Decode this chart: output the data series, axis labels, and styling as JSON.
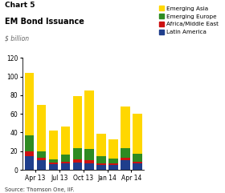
{
  "title_line1": "Chart 5",
  "title_line2": "EM Bond Issuance",
  "subtitle": "$ billion",
  "source": "Source: Thomson One, IIF.",
  "x_tick_labels": [
    "Apr 13",
    "Jul 13",
    "Oct 13",
    "Jan 14",
    "Apr 14"
  ],
  "x_tick_positions": [
    0.5,
    2.5,
    4.5,
    6.5,
    8.5
  ],
  "latin_america": [
    15,
    10,
    6,
    7,
    8,
    7,
    5,
    5,
    10,
    7
  ],
  "africa_me": [
    5,
    3,
    2,
    2,
    3,
    3,
    2,
    2,
    3,
    2
  ],
  "emerging_europe": [
    17,
    7,
    3,
    7,
    12,
    12,
    8,
    5,
    10,
    8
  ],
  "emerging_asia": [
    67,
    50,
    31,
    30,
    56,
    63,
    24,
    21,
    45,
    43
  ],
  "colors": {
    "emerging_asia": "#FFD700",
    "emerging_europe": "#2E8B22",
    "africa_me": "#CC1111",
    "latin_america": "#1F3E8C"
  },
  "ylim": [
    0,
    120
  ],
  "yticks": [
    0,
    20,
    40,
    60,
    80,
    100,
    120
  ],
  "legend_labels": [
    "Emerging Asia",
    "Emerging Europe",
    "Africa/Middle East",
    "Latin America"
  ],
  "legend_colors": [
    "#FFD700",
    "#2E8B22",
    "#CC1111",
    "#1F3E8C"
  ],
  "background_color": "#FFFFFF",
  "bar_width": 0.75
}
